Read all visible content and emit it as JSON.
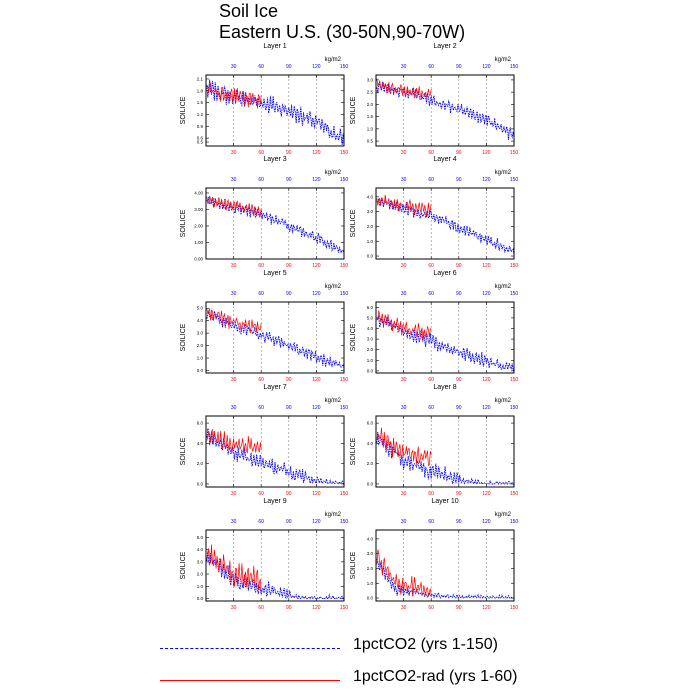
{
  "figure": {
    "title_line1": "Soil Ice",
    "title_line2": "Eastern U.S. (30-50N,90-70W)"
  },
  "legend": {
    "entries": [
      {
        "label": "1pctCO2 (yrs 1-150)",
        "color": "#0000ff",
        "style": "dashed"
      },
      {
        "label": "1pctCO2-rad (yrs 1-60)",
        "color": "#ff0000",
        "style": "solid"
      }
    ]
  },
  "colors": {
    "series_1pctCO2": "#0000ff",
    "series_1pctCO2_rad": "#ff0000",
    "gridline": "#888888"
  },
  "chart_data": [
    {
      "type": "line",
      "title": "Layer 1",
      "ylabel": "SOILICE",
      "top_axis_unit": "kg/m2",
      "xlim": [
        0,
        150
      ],
      "ylim": [
        0.4,
        2.2
      ],
      "xticks": [
        30,
        60,
        90,
        120,
        150
      ],
      "yticks": [
        "0.5",
        "0.6",
        "0.9",
        "1.2",
        "1.5",
        "1.8",
        "2.1"
      ],
      "series": [
        {
          "name": "1pctCO2 (yrs 1-150)",
          "x_range": [
            1,
            150
          ],
          "trend": [
            [
              0,
              1.85
            ],
            [
              30,
              1.65
            ],
            [
              60,
              1.5
            ],
            [
              90,
              1.3
            ],
            [
              120,
              1.0
            ],
            [
              150,
              0.55
            ]
          ],
          "amplitude": 0.28
        },
        {
          "name": "1pctCO2-rad (yrs 1-60)",
          "x_range": [
            1,
            60
          ],
          "trend": [
            [
              0,
              1.85
            ],
            [
              30,
              1.65
            ],
            [
              60,
              1.55
            ]
          ],
          "amplitude": 0.25
        }
      ]
    },
    {
      "type": "line",
      "title": "Layer 2",
      "ylabel": "SOILICE",
      "top_axis_unit": "kg/m2",
      "xlim": [
        0,
        150
      ],
      "ylim": [
        0.3,
        3.2
      ],
      "xticks": [
        30,
        60,
        90,
        120,
        150
      ],
      "yticks": [
        "0.5",
        "1.0",
        "1.5",
        "2.0",
        "2.5",
        "3.0"
      ],
      "series": [
        {
          "name": "1pctCO2 (yrs 1-150)",
          "x_range": [
            1,
            150
          ],
          "trend": [
            [
              0,
              2.75
            ],
            [
              30,
              2.5
            ],
            [
              60,
              2.2
            ],
            [
              90,
              1.8
            ],
            [
              120,
              1.4
            ],
            [
              150,
              0.7
            ]
          ],
          "amplitude": 0.3
        },
        {
          "name": "1pctCO2-rad (yrs 1-60)",
          "x_range": [
            1,
            60
          ],
          "trend": [
            [
              0,
              2.8
            ],
            [
              30,
              2.55
            ],
            [
              60,
              2.4
            ]
          ],
          "amplitude": 0.3
        }
      ]
    },
    {
      "type": "line",
      "title": "Layer 3",
      "ylabel": "SOILICE",
      "top_axis_unit": "kg/m2",
      "xlim": [
        0,
        150
      ],
      "ylim": [
        0,
        4.3
      ],
      "xticks": [
        30,
        60,
        90,
        120,
        150
      ],
      "yticks": [
        "0.00",
        "1.00",
        "2.00",
        "3.00",
        "4.00"
      ],
      "series": [
        {
          "name": "1pctCO2 (yrs 1-150)",
          "x_range": [
            1,
            150
          ],
          "trend": [
            [
              0,
              3.5
            ],
            [
              30,
              3.1
            ],
            [
              60,
              2.7
            ],
            [
              90,
              2.0
            ],
            [
              120,
              1.3
            ],
            [
              150,
              0.4
            ]
          ],
          "amplitude": 0.4
        },
        {
          "name": "1pctCO2-rad (yrs 1-60)",
          "x_range": [
            1,
            60
          ],
          "trend": [
            [
              0,
              3.6
            ],
            [
              30,
              3.2
            ],
            [
              60,
              2.9
            ]
          ],
          "amplitude": 0.4
        }
      ]
    },
    {
      "type": "line",
      "title": "Layer 4",
      "ylabel": "SOILICE",
      "top_axis_unit": "kg/m2",
      "xlim": [
        0,
        150
      ],
      "ylim": [
        -0.2,
        4.6
      ],
      "xticks": [
        30,
        60,
        90,
        120,
        150
      ],
      "yticks": [
        "0.0",
        "1.0",
        "2.0",
        "3.0",
        "4.0"
      ],
      "series": [
        {
          "name": "1pctCO2 (yrs 1-150)",
          "x_range": [
            1,
            150
          ],
          "trend": [
            [
              0,
              3.8
            ],
            [
              30,
              3.2
            ],
            [
              60,
              2.7
            ],
            [
              90,
              1.9
            ],
            [
              120,
              1.1
            ],
            [
              150,
              0.3
            ]
          ],
          "amplitude": 0.5
        },
        {
          "name": "1pctCO2-rad (yrs 1-60)",
          "x_range": [
            1,
            60
          ],
          "trend": [
            [
              0,
              3.9
            ],
            [
              30,
              3.4
            ],
            [
              60,
              3.1
            ]
          ],
          "amplitude": 0.55
        }
      ]
    },
    {
      "type": "line",
      "title": "Layer 5",
      "ylabel": "SOILICE",
      "top_axis_unit": "kg/m2",
      "xlim": [
        0,
        150
      ],
      "ylim": [
        -0.2,
        5.5
      ],
      "xticks": [
        30,
        60,
        90,
        120,
        150
      ],
      "yticks": [
        "0.0",
        "1.0",
        "2.0",
        "3.0",
        "4.0",
        "5.0"
      ],
      "series": [
        {
          "name": "1pctCO2 (yrs 1-150)",
          "x_range": [
            1,
            150
          ],
          "trend": [
            [
              0,
              4.6
            ],
            [
              30,
              3.6
            ],
            [
              60,
              2.9
            ],
            [
              90,
              2.0
            ],
            [
              120,
              1.1
            ],
            [
              150,
              0.3
            ]
          ],
          "amplitude": 0.6
        },
        {
          "name": "1pctCO2-rad (yrs 1-60)",
          "x_range": [
            1,
            60
          ],
          "trend": [
            [
              0,
              4.7
            ],
            [
              30,
              3.9
            ],
            [
              60,
              3.4
            ]
          ],
          "amplitude": 0.7
        }
      ]
    },
    {
      "type": "line",
      "title": "Layer 6",
      "ylabel": "SOILICE",
      "top_axis_unit": "kg/m2",
      "xlim": [
        0,
        150
      ],
      "ylim": [
        -0.2,
        6.5
      ],
      "xticks": [
        30,
        60,
        90,
        120,
        150
      ],
      "yticks": [
        "0.0",
        "1.0",
        "2.0",
        "3.0",
        "4.0",
        "5.0",
        "6.0"
      ],
      "series": [
        {
          "name": "1pctCO2 (yrs 1-150)",
          "x_range": [
            1,
            150
          ],
          "trend": [
            [
              0,
              5.0
            ],
            [
              30,
              3.8
            ],
            [
              60,
              2.8
            ],
            [
              90,
              1.8
            ],
            [
              120,
              0.9
            ],
            [
              150,
              0.2
            ]
          ],
          "amplitude": 0.8
        },
        {
          "name": "1pctCO2-rad (yrs 1-60)",
          "x_range": [
            1,
            60
          ],
          "trend": [
            [
              0,
              5.1
            ],
            [
              30,
              4.1
            ],
            [
              60,
              3.5
            ]
          ],
          "amplitude": 0.9
        }
      ]
    },
    {
      "type": "line",
      "title": "Layer 7",
      "ylabel": "SOILICE",
      "top_axis_unit": "kg/m2",
      "xlim": [
        0,
        150
      ],
      "ylim": [
        -0.3,
        6.7
      ],
      "xticks": [
        30,
        60,
        90,
        120,
        150
      ],
      "yticks": [
        "0.0",
        "2.0",
        "4.0",
        "6.0"
      ],
      "series": [
        {
          "name": "1pctCO2 (yrs 1-150)",
          "x_range": [
            1,
            150
          ],
          "trend": [
            [
              0,
              4.9
            ],
            [
              30,
              3.1
            ],
            [
              60,
              2.1
            ],
            [
              90,
              1.1
            ],
            [
              120,
              0.3
            ],
            [
              150,
              0.0
            ]
          ],
          "amplitude": 0.9
        },
        {
          "name": "1pctCO2-rad (yrs 1-60)",
          "x_range": [
            1,
            60
          ],
          "trend": [
            [
              0,
              5.0
            ],
            [
              30,
              3.9
            ],
            [
              60,
              3.6
            ]
          ],
          "amplitude": 1.1
        }
      ]
    },
    {
      "type": "line",
      "title": "Layer 8",
      "ylabel": "SOILICE",
      "top_axis_unit": "kg/m2",
      "xlim": [
        0,
        150
      ],
      "ylim": [
        -0.3,
        6.7
      ],
      "xticks": [
        30,
        60,
        90,
        120,
        150
      ],
      "yticks": [
        "0.0",
        "2.0",
        "4.0",
        "6.0"
      ],
      "series": [
        {
          "name": "1pctCO2 (yrs 1-150)",
          "x_range": [
            1,
            150
          ],
          "trend": [
            [
              0,
              4.6
            ],
            [
              30,
              2.3
            ],
            [
              60,
              1.2
            ],
            [
              90,
              0.4
            ],
            [
              120,
              0.0
            ],
            [
              150,
              0.0
            ]
          ],
          "amplitude": 1.0
        },
        {
          "name": "1pctCO2-rad (yrs 1-60)",
          "x_range": [
            1,
            60
          ],
          "trend": [
            [
              0,
              4.8
            ],
            [
              30,
              3.1
            ],
            [
              60,
              2.5
            ]
          ],
          "amplitude": 1.3
        }
      ]
    },
    {
      "type": "line",
      "title": "Layer 9",
      "ylabel": "SOILICE",
      "top_axis_unit": "kg/m2",
      "xlim": [
        0,
        150
      ],
      "ylim": [
        -0.2,
        5.6
      ],
      "xticks": [
        30,
        60,
        90,
        120,
        150
      ],
      "yticks": [
        "0.0",
        "1.0",
        "2.0",
        "3.0",
        "4.0",
        "5.0"
      ],
      "series": [
        {
          "name": "1pctCO2 (yrs 1-150)",
          "x_range": [
            1,
            150
          ],
          "trend": [
            [
              0,
              3.6
            ],
            [
              30,
              1.5
            ],
            [
              60,
              0.8
            ],
            [
              90,
              0.3
            ],
            [
              100,
              0.0
            ],
            [
              150,
              0.0
            ]
          ],
          "amplitude": 0.9
        },
        {
          "name": "1pctCO2-rad (yrs 1-60)",
          "x_range": [
            1,
            60
          ],
          "trend": [
            [
              0,
              3.8
            ],
            [
              30,
              2.0
            ],
            [
              60,
              1.4
            ]
          ],
          "amplitude": 1.2
        }
      ]
    },
    {
      "type": "line",
      "title": "Layer 10",
      "ylabel": "SOILICE",
      "top_axis_unit": "kg/m2",
      "xlim": [
        0,
        150
      ],
      "ylim": [
        -0.2,
        4.6
      ],
      "xticks": [
        30,
        60,
        90,
        120,
        150
      ],
      "yticks": [
        "0.0",
        "1.0",
        "2.0",
        "3.0",
        "4.0"
      ],
      "series": [
        {
          "name": "1pctCO2 (yrs 1-150)",
          "x_range": [
            1,
            150
          ],
          "trend": [
            [
              0,
              2.6
            ],
            [
              20,
              0.6
            ],
            [
              60,
              0.15
            ],
            [
              90,
              0.05
            ],
            [
              150,
              0.0
            ]
          ],
          "amplitude": 0.5
        },
        {
          "name": "1pctCO2-rad (yrs 1-60)",
          "x_range": [
            1,
            60
          ],
          "trend": [
            [
              0,
              2.9
            ],
            [
              20,
              1.0
            ],
            [
              60,
              0.5
            ]
          ],
          "amplitude": 0.8
        }
      ]
    }
  ]
}
